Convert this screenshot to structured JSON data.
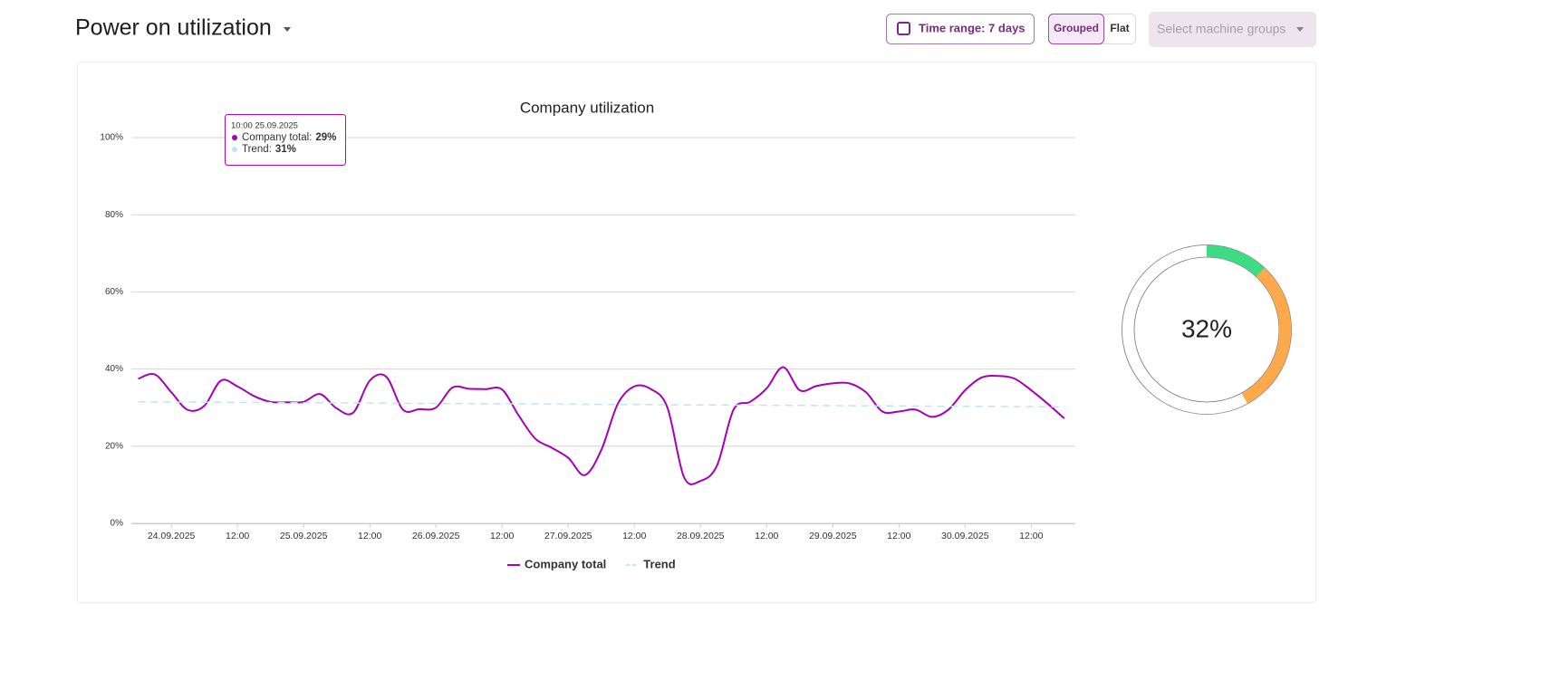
{
  "header": {
    "title": "Power on utilization",
    "time_range": "Time range: 7 days",
    "grouped": "Grouped",
    "flat": "Flat",
    "machine_groups": "Select machine groups"
  },
  "chart_data": {
    "type": "line",
    "title": "Company utilization",
    "x": [
      "2025-09-23 18:00",
      "2025-09-23 21:00",
      "2025-09-24 00:00",
      "2025-09-24 03:00",
      "2025-09-24 06:00",
      "2025-09-24 09:00",
      "2025-09-24 12:00",
      "2025-09-24 15:00",
      "2025-09-24 18:00",
      "2025-09-24 21:00",
      "2025-09-25 00:00",
      "2025-09-25 03:00",
      "2025-09-25 06:00",
      "2025-09-25 09:00",
      "2025-09-25 12:00",
      "2025-09-25 15:00",
      "2025-09-25 18:00",
      "2025-09-25 21:00",
      "2025-09-26 00:00",
      "2025-09-26 03:00",
      "2025-09-26 06:00",
      "2025-09-26 09:00",
      "2025-09-26 12:00",
      "2025-09-26 15:00",
      "2025-09-26 18:00",
      "2025-09-26 21:00",
      "2025-09-27 00:00",
      "2025-09-27 03:00",
      "2025-09-27 06:00",
      "2025-09-27 09:00",
      "2025-09-27 12:00",
      "2025-09-27 15:00",
      "2025-09-27 18:00",
      "2025-09-27 21:00",
      "2025-09-28 00:00",
      "2025-09-28 03:00",
      "2025-09-28 06:00",
      "2025-09-28 09:00",
      "2025-09-28 12:00",
      "2025-09-28 15:00",
      "2025-09-28 18:00",
      "2025-09-28 21:00",
      "2025-09-29 00:00",
      "2025-09-29 03:00",
      "2025-09-29 06:00",
      "2025-09-29 09:00",
      "2025-09-29 12:00",
      "2025-09-29 15:00",
      "2025-09-29 18:00",
      "2025-09-29 21:00",
      "2025-09-30 00:00",
      "2025-09-30 03:00",
      "2025-09-30 06:00",
      "2025-09-30 09:00",
      "2025-09-30 12:00",
      "2025-09-30 15:00",
      "2025-09-30 18:00"
    ],
    "series": [
      {
        "name": "Company total",
        "color": "#a500b5",
        "values": [
          37.5,
          38.6,
          34,
          29.4,
          30.5,
          37,
          35.5,
          33,
          31.5,
          31.4,
          31.5,
          33.5,
          29.8,
          28.7,
          37,
          38,
          29.5,
          29.6,
          30,
          35.2,
          34.9,
          34.8,
          34.7,
          28,
          22,
          19.6,
          17,
          12.5,
          19,
          31,
          35.5,
          34.8,
          30,
          12,
          11,
          15,
          29.5,
          31.5,
          35,
          40.5,
          34.5,
          35.6,
          36.3,
          36.3,
          34,
          29,
          29,
          29.5,
          27.6,
          29.5,
          34.5,
          37.8,
          38.2,
          37.5,
          34.5,
          31,
          27.2
        ]
      },
      {
        "name": "Trend",
        "color": "#bfe3f5",
        "dashed": true,
        "x": [
          "2025-09-23 18:00",
          "2025-09-30 18:00"
        ],
        "values": [
          31.5,
          30.2
        ]
      }
    ],
    "xlim": [
      "2025-09-23 16:45",
      "2025-09-30 20:00"
    ],
    "xticks": [
      {
        "value": "2025-09-24 00:00",
        "label": "24.09.2025"
      },
      {
        "value": "2025-09-24 12:00",
        "label": "12:00"
      },
      {
        "value": "2025-09-25 00:00",
        "label": "25.09.2025"
      },
      {
        "value": "2025-09-25 12:00",
        "label": "12:00"
      },
      {
        "value": "2025-09-26 00:00",
        "label": "26.09.2025"
      },
      {
        "value": "2025-09-26 12:00",
        "label": "12:00"
      },
      {
        "value": "2025-09-27 00:00",
        "label": "27.09.2025"
      },
      {
        "value": "2025-09-27 12:00",
        "label": "12:00"
      },
      {
        "value": "2025-09-28 00:00",
        "label": "28.09.2025"
      },
      {
        "value": "2025-09-28 12:00",
        "label": "12:00"
      },
      {
        "value": "2025-09-29 00:00",
        "label": "29.09.2025"
      },
      {
        "value": "2025-09-29 12:00",
        "label": "12:00"
      },
      {
        "value": "2025-09-30 00:00",
        "label": "30.09.2025"
      },
      {
        "value": "2025-09-30 12:00",
        "label": "12:00"
      }
    ],
    "ylim": [
      0,
      100
    ],
    "yticks": [
      {
        "value": 0,
        "label": "0%"
      },
      {
        "value": 20,
        "label": "20%"
      },
      {
        "value": 40,
        "label": "40%"
      },
      {
        "value": 60,
        "label": "60%"
      },
      {
        "value": 80,
        "label": "80%"
      },
      {
        "value": 100,
        "label": "100%"
      }
    ],
    "grid": true,
    "tooltip": {
      "time": "10:00 25.09.2025",
      "series_label": "Company total:",
      "series_value": "29%",
      "trend_label": "Trend:",
      "trend_value": "31%"
    }
  },
  "donut": {
    "type": "pie",
    "center_label": "32%",
    "segments": [
      {
        "color": "#3ddc84",
        "value": 12
      },
      {
        "color": "#ffa94d",
        "value": 30
      }
    ]
  }
}
